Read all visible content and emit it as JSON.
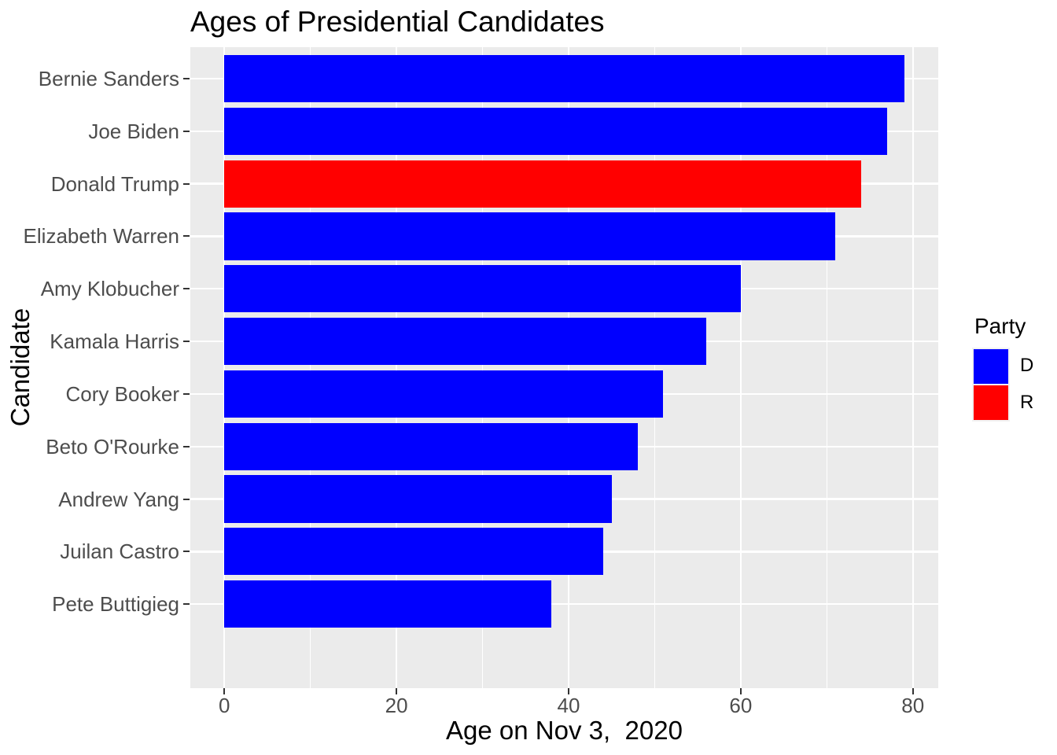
{
  "title": "Ages of Presidential Candidates",
  "x_axis": {
    "title": "Age on Nov 3,  2020",
    "ticks": [
      0,
      20,
      40,
      60,
      80
    ],
    "minor_ticks": [
      10,
      30,
      50,
      70
    ]
  },
  "y_axis": {
    "title": "Candidate"
  },
  "legend": {
    "title": "Party",
    "entries": [
      {
        "label": "D",
        "color": "#0000ff"
      },
      {
        "label": "R",
        "color": "#ff0000"
      }
    ]
  },
  "chart_data": {
    "type": "bar",
    "orientation": "horizontal",
    "title": "Ages of Presidential Candidates",
    "xlabel": "Age on Nov 3,  2020",
    "ylabel": "Candidate",
    "categories": [
      "Bernie Sanders",
      "Joe Biden",
      "Donald Trump",
      "Elizabeth Warren",
      "Amy Klobucher",
      "Kamala Harris",
      "Cory Booker",
      "Beto O'Rourke",
      "Andrew Yang",
      "Juilan Castro",
      "Pete Buttigieg"
    ],
    "values": [
      79,
      77,
      74,
      71,
      60,
      56,
      51,
      48,
      45,
      44,
      38
    ],
    "parties": [
      "D",
      "D",
      "R",
      "D",
      "D",
      "D",
      "D",
      "D",
      "D",
      "D",
      "D"
    ],
    "party_colors": {
      "D": "#0000ff",
      "R": "#ff0000"
    },
    "xlim": [
      0,
      79
    ],
    "x_ticks": [
      0,
      20,
      40,
      60,
      80
    ],
    "x_minor_ticks": [
      10,
      30,
      50,
      70
    ],
    "grid": true,
    "legend_position": "right",
    "style": {
      "panel_background": "#ebebeb",
      "gridline_color": "#ffffff",
      "axis_text_color": "#4d4d4d",
      "axis_tick_color": "#333333",
      "legend_key_background": "#f2f2f2"
    }
  }
}
